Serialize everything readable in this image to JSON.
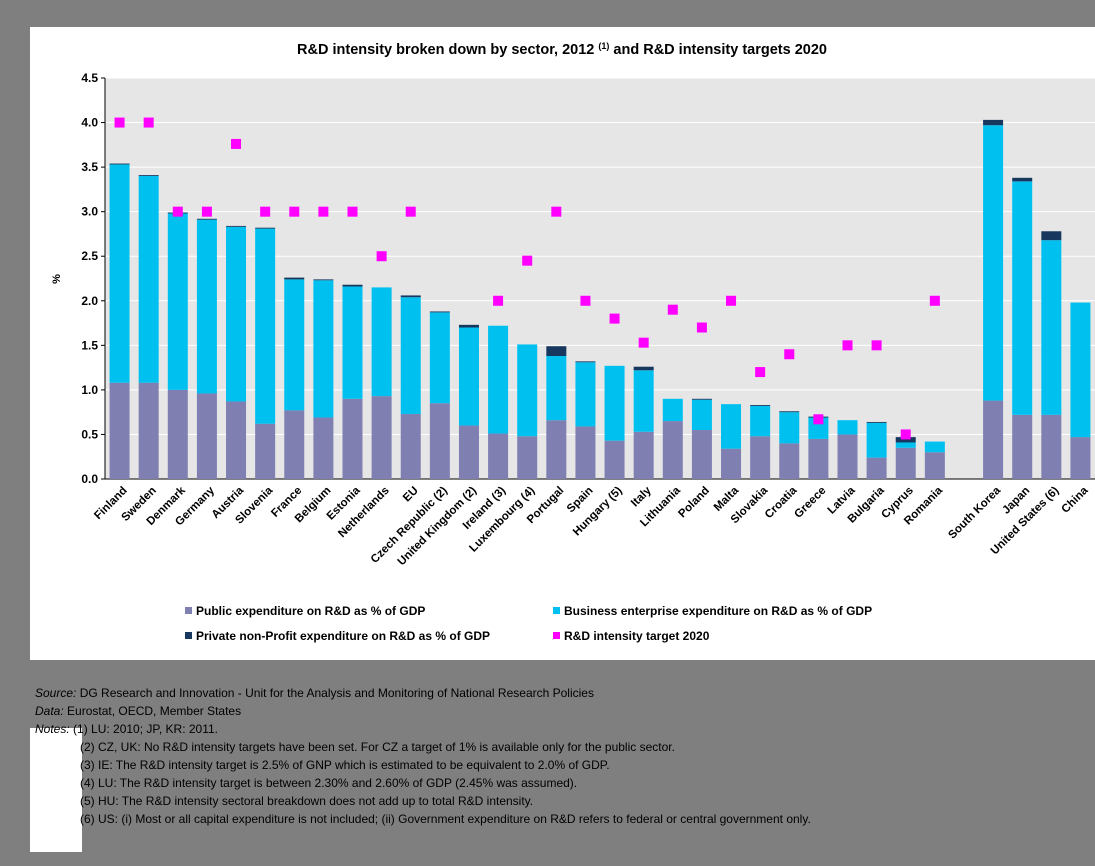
{
  "chart_data": {
    "type": "bar",
    "stacked": true,
    "title": "R&D intensity broken down by sector, 2012",
    "title_superscript": "(1)",
    "title_suffix": "and R&D intensity targets 2020",
    "ylabel": "%",
    "ylim": [
      0,
      4.5
    ],
    "yticks": [
      "0.0",
      "0.5",
      "1.0",
      "1.5",
      "2.0",
      "2.5",
      "3.0",
      "3.5",
      "4.0",
      "4.5"
    ],
    "grid": true,
    "legend_position": "bottom",
    "categories": [
      "Finland",
      "Sweden",
      "Denmark",
      "Germany",
      "Austria",
      "Slovenia",
      "France",
      "Belgium",
      "Estonia",
      "Netherlands",
      "EU",
      "Czech Republic (2)",
      "United Kingdom (2)",
      "Ireland (3)",
      "Luxembourg (4)",
      "Portugal",
      "Spain",
      "Hungary (5)",
      "Italy",
      "Lithuania",
      "Poland",
      "Malta",
      "Slovakia",
      "Croatia",
      "Greece",
      "Latvia",
      "Bulgaria",
      "Cyprus",
      "Romania",
      "",
      "South Korea",
      "Japan",
      "United States (6)",
      "China"
    ],
    "series": [
      {
        "name": "Public expenditure on R&D as % of GDP",
        "color": "#7f7fb2",
        "values": [
          1.08,
          1.08,
          1.0,
          0.96,
          0.87,
          0.62,
          0.77,
          0.69,
          0.9,
          0.93,
          0.73,
          0.85,
          0.6,
          0.51,
          0.48,
          0.66,
          0.59,
          0.43,
          0.53,
          0.65,
          0.55,
          0.34,
          0.48,
          0.4,
          0.45,
          0.5,
          0.24,
          0.35,
          0.3,
          null,
          0.88,
          0.72,
          0.72,
          0.47
        ]
      },
      {
        "name": "Business enterprise expenditure on R&D as % of GDP",
        "color": "#00c0f0",
        "values": [
          2.45,
          2.32,
          1.98,
          1.95,
          1.96,
          2.19,
          1.47,
          1.54,
          1.26,
          1.22,
          1.31,
          1.02,
          1.1,
          1.21,
          1.03,
          0.72,
          0.72,
          0.84,
          0.69,
          0.25,
          0.34,
          0.5,
          0.34,
          0.35,
          0.24,
          0.16,
          0.39,
          0.06,
          0.12,
          null,
          3.09,
          2.62,
          1.96,
          1.51
        ]
      },
      {
        "name": "Private non-Profit expenditure on R&D as % of GDP",
        "color": "#17375e",
        "values": [
          0.01,
          0.01,
          0.01,
          0.01,
          0.01,
          0.01,
          0.02,
          0.01,
          0.02,
          0.0,
          0.02,
          0.01,
          0.03,
          0.0,
          0.0,
          0.11,
          0.01,
          0.0,
          0.04,
          0.0,
          0.01,
          0.0,
          0.01,
          0.01,
          0.01,
          0.0,
          0.01,
          0.06,
          0.0,
          null,
          0.06,
          0.04,
          0.1,
          0.0
        ]
      }
    ],
    "targets": {
      "name": "R&D intensity target 2020",
      "color": "#ff00ff",
      "values": [
        4.0,
        4.0,
        3.0,
        3.0,
        3.76,
        3.0,
        3.0,
        3.0,
        3.0,
        2.5,
        3.0,
        null,
        null,
        2.0,
        2.45,
        3.0,
        2.0,
        1.8,
        1.53,
        1.9,
        1.7,
        2.0,
        1.2,
        1.4,
        0.67,
        1.5,
        1.5,
        0.5,
        2.0,
        null,
        null,
        null,
        null,
        null
      ]
    }
  },
  "notes": {
    "source_label": "Source:",
    "source_text": "DG Research and Innovation - Unit for the Analysis and Monitoring of National Research Policies",
    "data_label": "Data:",
    "data_text": "Eurostat, OECD, Member States",
    "notes_label": "Notes:",
    "note_1": "(1) LU: 2010; JP, KR: 2011.",
    "note_2": "(2) CZ, UK: No R&D intensity targets have been set. For CZ a target of 1% is available only for the public sector.",
    "note_3": "(3) IE: The R&D intensity target is 2.5% of GNP which is estimated to be equivalent to 2.0% of GDP.",
    "note_4": "(4) LU: The R&D intensity target is between 2.30% and 2.60% of GDP (2.45% was assumed).",
    "note_5": "(5) HU: The R&D intensity sectoral breakdown does not add up to total R&D intensity.",
    "note_6": "(6) US: (i) Most or all capital expenditure is not included; (ii) Government expenditure on R&D refers to federal or central government only."
  }
}
